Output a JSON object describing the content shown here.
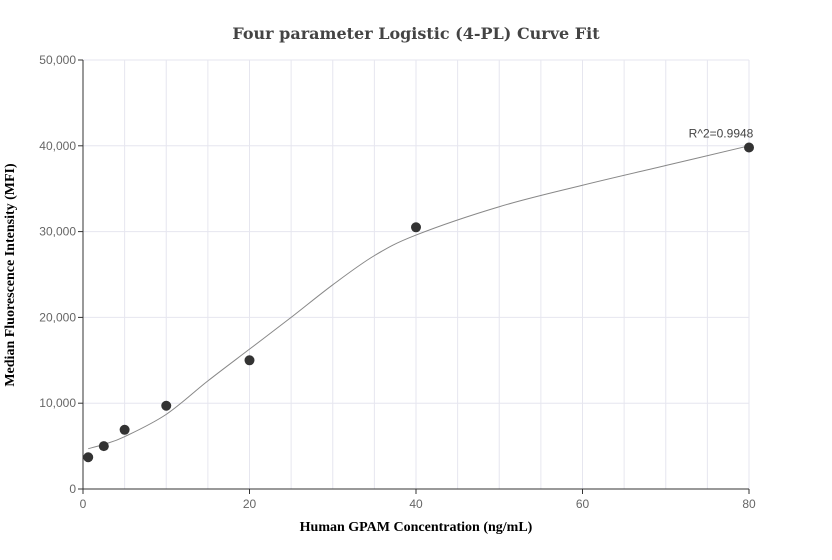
{
  "chart_data": {
    "type": "scatter",
    "title": "Four parameter Logistic (4-PL) Curve Fit",
    "xlabel": "Human GPAM Concentration (ng/mL)",
    "ylabel": "Median Fluorescence Intensity (MFI)",
    "xlim": [
      0,
      80
    ],
    "ylim": [
      0,
      50000
    ],
    "x_ticks": [
      0,
      20,
      40,
      60,
      80
    ],
    "x_tick_labels": [
      "0",
      "20",
      "40",
      "60",
      "80"
    ],
    "y_ticks": [
      0,
      10000,
      20000,
      30000,
      40000,
      50000
    ],
    "y_tick_labels": [
      "0",
      "10,000",
      "20,000",
      "30,000",
      "40,000",
      "50,000"
    ],
    "grid": true,
    "series": [
      {
        "type": "scatter",
        "x": [
          0.625,
          2.5,
          5,
          10,
          20,
          40,
          80
        ],
        "y": [
          3700,
          5000,
          6900,
          9700,
          15000,
          30500,
          39800
        ]
      },
      {
        "type": "line",
        "x": [
          0.625,
          2.5,
          5,
          10,
          15,
          20,
          25,
          30,
          35,
          40,
          50,
          60,
          70,
          80
        ],
        "y": [
          4700,
          5200,
          6100,
          8700,
          12600,
          16300,
          20000,
          23800,
          27200,
          29600,
          32900,
          35400,
          37700,
          40000
        ]
      }
    ],
    "annotation": {
      "text": "R^2=0.9948",
      "x": 80,
      "y": 39800
    },
    "colors": {
      "points": "#333333",
      "curve": "#888888",
      "grid": "#e6e6ef",
      "axis": "#333333"
    }
  }
}
